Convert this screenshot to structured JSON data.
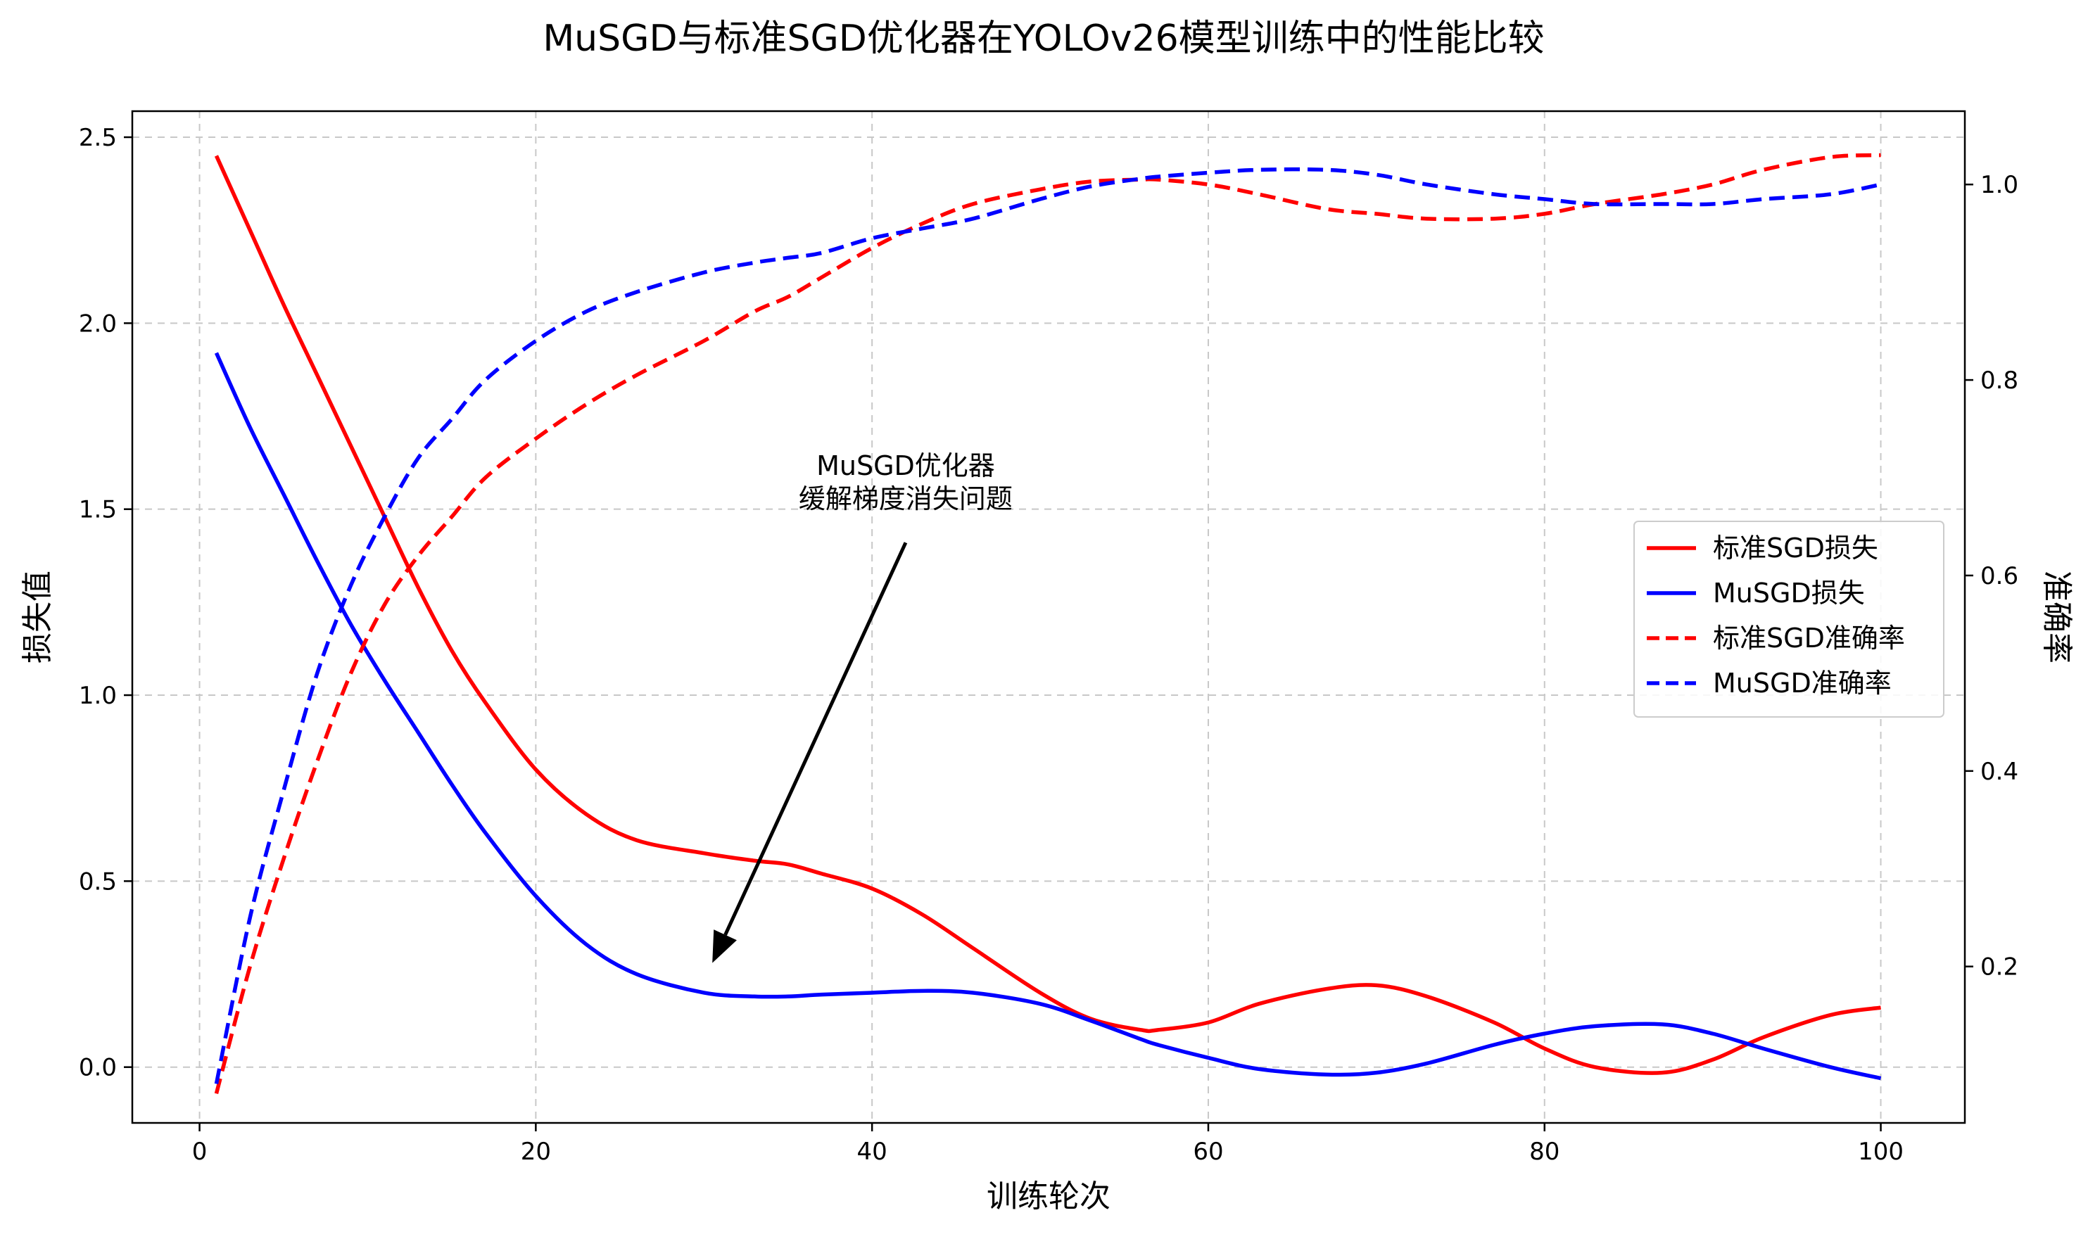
{
  "chart_data": {
    "type": "line",
    "title": "MuSGD与标准SGD优化器在YOLOv26模型训练中的性能比较",
    "xlabel": "训练轮次",
    "ylabel_left": "损失值",
    "ylabel_right": "准确率",
    "xlim": [
      -4,
      105
    ],
    "ylim_left": [
      -0.15,
      2.57
    ],
    "ylim_right": [
      0.04,
      1.075
    ],
    "x_ticks": [
      0,
      20,
      40,
      60,
      80,
      100
    ],
    "y_ticks_left": [
      0.0,
      0.5,
      1.0,
      1.5,
      2.0,
      2.5
    ],
    "y_ticks_right": [
      0.2,
      0.4,
      0.6,
      0.8,
      1.0
    ],
    "grid": true,
    "legend_position": "center-right",
    "x": [
      1,
      3,
      5,
      7,
      9,
      11,
      13,
      15,
      17,
      20,
      23,
      26,
      30,
      33,
      35,
      37,
      40,
      43,
      46,
      50,
      53,
      56,
      57,
      60,
      63,
      67,
      70,
      73,
      77,
      80,
      83,
      87,
      90,
      93,
      97,
      100
    ],
    "series": [
      {
        "name": "标准SGD损失",
        "axis": "left",
        "color": "#ff0000",
        "style": "solid",
        "values": [
          2.45,
          2.25,
          2.05,
          1.86,
          1.67,
          1.48,
          1.29,
          1.12,
          0.98,
          0.8,
          0.68,
          0.61,
          0.575,
          0.555,
          0.545,
          0.52,
          0.48,
          0.41,
          0.32,
          0.2,
          0.13,
          0.1,
          0.1,
          0.12,
          0.17,
          0.21,
          0.22,
          0.19,
          0.12,
          0.05,
          0.0,
          -0.015,
          0.02,
          0.08,
          0.14,
          0.16
        ]
      },
      {
        "name": "MuSGD损失",
        "axis": "left",
        "color": "#0000ff",
        "style": "solid",
        "values": [
          1.92,
          1.72,
          1.54,
          1.36,
          1.19,
          1.04,
          0.9,
          0.76,
          0.63,
          0.46,
          0.33,
          0.25,
          0.2,
          0.19,
          0.19,
          0.195,
          0.2,
          0.205,
          0.2,
          0.17,
          0.125,
          0.075,
          0.06,
          0.025,
          -0.005,
          -0.02,
          -0.015,
          0.01,
          0.06,
          0.09,
          0.11,
          0.115,
          0.09,
          0.05,
          0.0,
          -0.03
        ]
      },
      {
        "name": "标准SGD准确率",
        "axis": "right",
        "color": "#ff0000",
        "style": "dashed",
        "values": [
          0.07,
          0.2,
          0.31,
          0.41,
          0.5,
          0.57,
          0.62,
          0.66,
          0.7,
          0.74,
          0.775,
          0.805,
          0.84,
          0.87,
          0.885,
          0.905,
          0.935,
          0.96,
          0.98,
          0.995,
          1.003,
          1.005,
          1.005,
          1.0,
          0.99,
          0.975,
          0.97,
          0.965,
          0.965,
          0.97,
          0.98,
          0.99,
          1.0,
          1.015,
          1.028,
          1.03
        ]
      },
      {
        "name": "MuSGD准确率",
        "axis": "right",
        "color": "#0000ff",
        "style": "dashed",
        "values": [
          0.08,
          0.25,
          0.38,
          0.5,
          0.59,
          0.66,
          0.72,
          0.76,
          0.8,
          0.84,
          0.87,
          0.89,
          0.91,
          0.92,
          0.925,
          0.93,
          0.945,
          0.955,
          0.965,
          0.985,
          0.998,
          1.006,
          1.008,
          1.012,
          1.015,
          1.015,
          1.01,
          1.0,
          0.99,
          0.985,
          0.98,
          0.98,
          0.98,
          0.985,
          0.99,
          1.0
        ]
      }
    ],
    "annotation": {
      "lines": [
        "MuSGD优化器",
        "缓解梯度消失问题"
      ],
      "text_x": 42,
      "arrow_from": [
        42,
        1.41
      ],
      "arrow_to": [
        30.5,
        0.28
      ]
    }
  }
}
